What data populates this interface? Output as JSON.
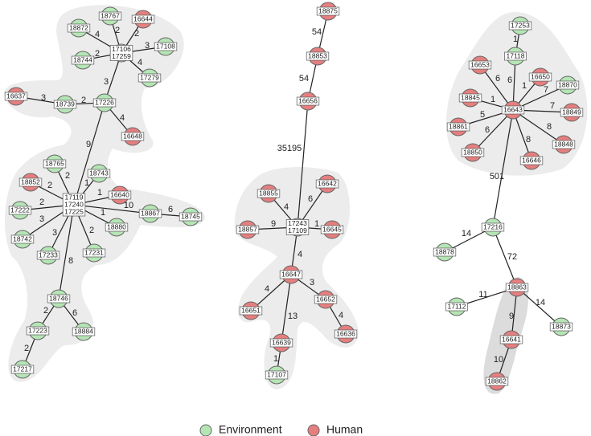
{
  "nodes": [
    {
      "labels": [
        "18767"
      ],
      "color": "#b5e5b5"
    },
    {
      "labels": [
        "16644"
      ],
      "color": "#e57f7f"
    },
    {
      "labels": [
        "18872"
      ],
      "color": "#b5e5b5"
    },
    {
      "labels": [
        "17106",
        "17259"
      ],
      "color": "#b5e5b5"
    },
    {
      "labels": [
        "17108"
      ],
      "color": "#b5e5b5"
    },
    {
      "labels": [
        "18744"
      ],
      "color": "#b5e5b5"
    },
    {
      "labels": [
        "17279"
      ],
      "color": "#b5e5b5"
    },
    {
      "labels": [
        "16637"
      ],
      "color": "#e57f7f"
    },
    {
      "labels": [
        "18739"
      ],
      "color": "#b5e5b5"
    },
    {
      "labels": [
        "17226"
      ],
      "color": "#b5e5b5"
    },
    {
      "labels": [
        "16648"
      ],
      "color": "#e57f7f"
    },
    {
      "labels": [
        "18765"
      ],
      "color": "#b5e5b5"
    },
    {
      "labels": [
        "18743"
      ],
      "color": "#b5e5b5"
    },
    {
      "labels": [
        "18852"
      ],
      "color": "#e57f7f"
    },
    {
      "labels": [
        "17119",
        "17240",
        "17225"
      ],
      "color": "#b5e5b5"
    },
    {
      "labels": [
        "16640"
      ],
      "color": "#e57f7f"
    },
    {
      "labels": [
        "17222"
      ],
      "color": "#b5e5b5"
    },
    {
      "labels": [
        "18867"
      ],
      "color": "#b5e5b5"
    },
    {
      "labels": [
        "18745"
      ],
      "color": "#b5e5b5"
    },
    {
      "labels": [
        "18880"
      ],
      "color": "#b5e5b5"
    },
    {
      "labels": [
        "18742"
      ],
      "color": "#b5e5b5"
    },
    {
      "labels": [
        "17231"
      ],
      "color": "#b5e5b5"
    },
    {
      "labels": [
        "17233"
      ],
      "color": "#b5e5b5"
    },
    {
      "labels": [
        "18746"
      ],
      "color": "#b5e5b5"
    },
    {
      "labels": [
        "17223"
      ],
      "color": "#b5e5b5"
    },
    {
      "labels": [
        "18884"
      ],
      "color": "#b5e5b5"
    },
    {
      "labels": [
        "17217"
      ],
      "color": "#b5e5b5"
    },
    {
      "labels": [
        "18875"
      ],
      "color": "#e57f7f"
    },
    {
      "labels": [
        "18853"
      ],
      "color": "#e57f7f"
    },
    {
      "labels": [
        "16656"
      ],
      "color": "#e57f7f"
    },
    {
      "labels": [
        "18855"
      ],
      "color": "#e57f7f"
    },
    {
      "labels": [
        "16642"
      ],
      "color": "#e57f7f"
    },
    {
      "labels": [
        "18857"
      ],
      "color": "#e57f7f"
    },
    {
      "labels": [
        "17243",
        "17109"
      ],
      "color": "#b5e5b5"
    },
    {
      "labels": [
        "16645"
      ],
      "color": "#e57f7f"
    },
    {
      "labels": [
        "16647"
      ],
      "color": "#e57f7f"
    },
    {
      "labels": [
        "16651"
      ],
      "color": "#e57f7f"
    },
    {
      "labels": [
        "16652"
      ],
      "color": "#e57f7f"
    },
    {
      "labels": [
        "16636"
      ],
      "color": "#e57f7f"
    },
    {
      "labels": [
        "16639"
      ],
      "color": "#e57f7f"
    },
    {
      "labels": [
        "17107"
      ],
      "color": "#b5e5b5"
    },
    {
      "labels": [
        "17253"
      ],
      "color": "#b5e5b5"
    },
    {
      "labels": [
        "17118"
      ],
      "color": "#b5e5b5"
    },
    {
      "labels": [
        "16653"
      ],
      "color": "#e57f7f"
    },
    {
      "labels": [
        "16650"
      ],
      "color": "#e57f7f"
    },
    {
      "labels": [
        "18870"
      ],
      "color": "#b5e5b5"
    },
    {
      "labels": [
        "18845"
      ],
      "color": "#e57f7f"
    },
    {
      "labels": [
        "16643"
      ],
      "color": "#e57f7f"
    },
    {
      "labels": [
        "18849"
      ],
      "color": "#e57f7f"
    },
    {
      "labels": [
        "18861"
      ],
      "color": "#e57f7f"
    },
    {
      "labels": [
        "18848"
      ],
      "color": "#e57f7f"
    },
    {
      "labels": [
        "18850"
      ],
      "color": "#e57f7f"
    },
    {
      "labels": [
        "16646"
      ],
      "color": "#e57f7f"
    },
    {
      "labels": [
        "17216"
      ],
      "color": "#b5e5b5"
    },
    {
      "labels": [
        "18878"
      ],
      "color": "#b5e5b5"
    },
    {
      "labels": [
        "18863"
      ],
      "color": "#e57f7f"
    },
    {
      "labels": [
        "17112"
      ],
      "color": "#b5e5b5"
    },
    {
      "labels": [
        "18873"
      ],
      "color": "#b5e5b5"
    },
    {
      "labels": [
        "16641"
      ],
      "color": "#e57f7f"
    },
    {
      "labels": [
        "18862"
      ],
      "color": "#e57f7f"
    }
  ],
  "edges": [
    {
      "weight": 2
    },
    {
      "weight": 2
    },
    {
      "weight": 4
    },
    {
      "weight": 3
    },
    {
      "weight": 2
    },
    {
      "weight": 4
    },
    {
      "weight": 3
    },
    {
      "weight": 2
    },
    {
      "weight": 3
    },
    {
      "weight": 4
    },
    {
      "weight": 9
    },
    {
      "weight": 2
    },
    {
      "weight": 1
    },
    {
      "weight": 2
    },
    {
      "weight": 1
    },
    {
      "weight": 2
    },
    {
      "weight": 10
    },
    {
      "weight": 6
    },
    {
      "weight": 1
    },
    {
      "weight": 3
    },
    {
      "weight": 2
    },
    {
      "weight": 3
    },
    {
      "weight": 8
    },
    {
      "weight": 2
    },
    {
      "weight": 6
    },
    {
      "weight": 2
    },
    {
      "weight": 54
    },
    {
      "weight": 54
    },
    {
      "weight": 35195
    },
    {
      "weight": 4
    },
    {
      "weight": 6
    },
    {
      "weight": 9
    },
    {
      "weight": 1
    },
    {
      "weight": 4
    },
    {
      "weight": 4
    },
    {
      "weight": 3
    },
    {
      "weight": 4
    },
    {
      "weight": 13
    },
    {
      "weight": 1
    },
    {
      "weight": 1
    },
    {
      "weight": 6
    },
    {
      "weight": 6
    },
    {
      "weight": 1
    },
    {
      "weight": 7
    },
    {
      "weight": 1
    },
    {
      "weight": 7
    },
    {
      "weight": 5
    },
    {
      "weight": 8
    },
    {
      "weight": 6
    },
    {
      "weight": 8
    },
    {
      "weight": 501
    },
    {
      "weight": 14
    },
    {
      "weight": 72
    },
    {
      "weight": 11
    },
    {
      "weight": 14
    },
    {
      "weight": 9
    },
    {
      "weight": 10
    }
  ],
  "legend": {
    "items": [
      {
        "label": "Environment",
        "color": "#b5e5b5"
      },
      {
        "label": "Human",
        "color": "#e57f7f"
      }
    ]
  }
}
